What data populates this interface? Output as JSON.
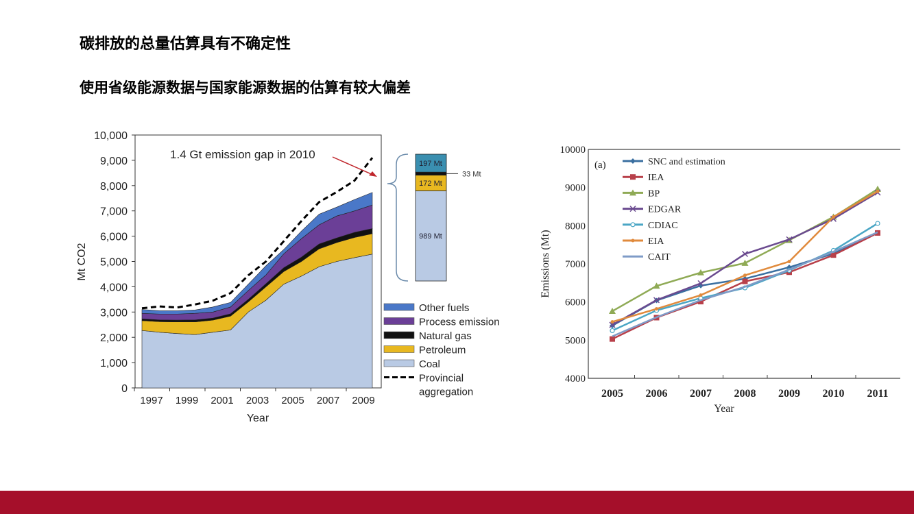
{
  "slide": {
    "title": "碳排放的总量估算具有不确定性",
    "subtitle": "使用省级能源数据与国家能源数据的估算有较大偏差",
    "footer_color": "#a50f2a"
  },
  "chart_data": [
    {
      "type": "area",
      "stacked": true,
      "ylabel": "Mt CO2",
      "xlabel": "Year",
      "ylim": [
        0,
        10000
      ],
      "yticks": [
        "0",
        "1,000",
        "2,000",
        "3,000",
        "4,000",
        "5,000",
        "6,000",
        "7,000",
        "8,000",
        "9,000",
        "10,000"
      ],
      "xticks": [
        "1997",
        "1999",
        "2001",
        "2003",
        "2005",
        "2007",
        "2009"
      ],
      "x": [
        1997,
        1998,
        1999,
        2000,
        2001,
        2002,
        2003,
        2004,
        2005,
        2006,
        2007,
        2008,
        2009,
        2010
      ],
      "series": [
        {
          "name": "Coal",
          "color": "#b9cae4",
          "values": [
            2270,
            2200,
            2150,
            2110,
            2200,
            2290,
            3000,
            3470,
            4100,
            4420,
            4790,
            5000,
            5150,
            5290
          ]
        },
        {
          "name": "Petroleum",
          "color": "#e8b820",
          "values": [
            390,
            420,
            460,
            500,
            480,
            550,
            400,
            530,
            500,
            580,
            710,
            750,
            800,
            810
          ]
        },
        {
          "name": "Natural gas",
          "color": "#111111",
          "values": [
            70,
            70,
            70,
            80,
            80,
            90,
            100,
            120,
            150,
            170,
            190,
            180,
            200,
            200
          ]
        },
        {
          "name": "Process emission",
          "color": "#6b3f97",
          "values": [
            220,
            230,
            240,
            260,
            240,
            270,
            350,
            350,
            550,
            730,
            760,
            870,
            850,
            930
          ]
        },
        {
          "name": "Other fuels",
          "color": "#4a78c8",
          "values": [
            150,
            130,
            130,
            130,
            200,
            180,
            250,
            360,
            170,
            300,
            420,
            350,
            450,
            500
          ]
        }
      ],
      "line_series": {
        "name": "Provincial aggregation",
        "style": "dashed",
        "color": "#000000",
        "values": [
          3150,
          3220,
          3180,
          3300,
          3450,
          3750,
          4450,
          5000,
          5800,
          6600,
          7350,
          7750,
          8200,
          9100
        ]
      },
      "legend_order": [
        "Other fuels",
        "Process emission",
        "Natural gas",
        "Petroleum",
        "Coal",
        "Provincial aggregation"
      ],
      "legend_placement": "right",
      "annotation": "1.4 Gt emission gap in 2010",
      "annotation_color": "#c0272d",
      "gap_breakdown": [
        {
          "label": "989 Mt",
          "value": 989,
          "color": "#b9cae4"
        },
        {
          "label": "172 Mt",
          "value": 172,
          "color": "#e8b820"
        },
        {
          "label": "33 Mt",
          "value": 33,
          "color": "#111111"
        },
        {
          "label": "197 Mt",
          "value": 197,
          "color": "#3a8fb0"
        }
      ]
    },
    {
      "type": "line",
      "panel_label": "(a)",
      "xlabel": "Year",
      "ylabel": "Emissions (Mt)",
      "ylim": [
        4000,
        10000
      ],
      "yticks": [
        "4000",
        "5000",
        "6000",
        "7000",
        "8000",
        "9000",
        "10000"
      ],
      "categories": [
        "2005",
        "2006",
        "2007",
        "2008",
        "2009",
        "2010",
        "2011"
      ],
      "legend_placement": "top-left",
      "series": [
        {
          "name": "SNC and estimation",
          "color": "#3a6fa0",
          "marker": "diamond",
          "values": [
            5380,
            6040,
            6430,
            6610,
            6910,
            7270,
            7810
          ]
        },
        {
          "name": "IEA",
          "color": "#b8404a",
          "marker": "square",
          "values": [
            5030,
            5590,
            6010,
            6540,
            6780,
            7230,
            7810
          ]
        },
        {
          "name": "BP",
          "color": "#8faa55",
          "marker": "triangle",
          "values": [
            5760,
            6420,
            6770,
            7020,
            7620,
            8230,
            8960
          ]
        },
        {
          "name": "EDGAR",
          "color": "#6a4a8f",
          "marker": "x",
          "values": [
            5400,
            6050,
            6490,
            7260,
            7640,
            8180,
            8870
          ]
        },
        {
          "name": "CDIAC",
          "color": "#4aa6c5",
          "marker": "circle",
          "values": [
            5250,
            5780,
            6100,
            6370,
            6830,
            7350,
            8060
          ]
        },
        {
          "name": "EIA",
          "color": "#e08a3c",
          "marker": "dot",
          "values": [
            5480,
            5820,
            6180,
            6700,
            7060,
            8230,
            8900
          ]
        },
        {
          "name": "CAIT",
          "color": "#7f9bc7",
          "marker": "dash",
          "values": [
            5100,
            5600,
            6050,
            6400,
            6850,
            7320,
            7830
          ]
        }
      ]
    }
  ]
}
